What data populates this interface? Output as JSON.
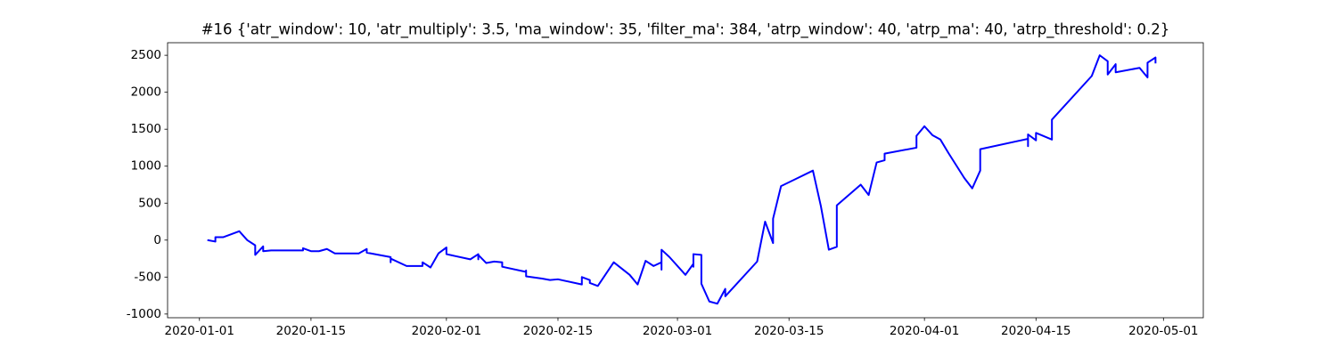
{
  "chart_data": {
    "type": "line",
    "title": "#16 {'atr_window': 10, 'atr_multiply': 3.5, 'ma_window': 35, 'filter_ma': 384, 'atrp_window': 40, 'atrp_ma': 40, 'atrp_threshold': 0.2}",
    "color": "#0000ff",
    "x": [
      "2020-01-02",
      "2020-01-03",
      "2020-01-03",
      "2020-01-04",
      "2020-01-06",
      "2020-01-07",
      "2020-01-08",
      "2020-01-08",
      "2020-01-09",
      "2020-01-09",
      "2020-01-10",
      "2020-01-14",
      "2020-01-14",
      "2020-01-15",
      "2020-01-16",
      "2020-01-17",
      "2020-01-18",
      "2020-01-21",
      "2020-01-22",
      "2020-01-22",
      "2020-01-25",
      "2020-01-25",
      "2020-01-25",
      "2020-01-27",
      "2020-01-29",
      "2020-01-29",
      "2020-01-30",
      "2020-01-31",
      "2020-02-01",
      "2020-02-01",
      "2020-02-04",
      "2020-02-05",
      "2020-02-05",
      "2020-02-05",
      "2020-02-06",
      "2020-02-07",
      "2020-02-08",
      "2020-02-08",
      "2020-02-11",
      "2020-02-11",
      "2020-02-11",
      "2020-02-13",
      "2020-02-14",
      "2020-02-15",
      "2020-02-18",
      "2020-02-18",
      "2020-02-19",
      "2020-02-19",
      "2020-02-20",
      "2020-02-22",
      "2020-02-24",
      "2020-02-25",
      "2020-02-26",
      "2020-02-27",
      "2020-02-28",
      "2020-02-28",
      "2020-02-28",
      "2020-02-29",
      "2020-03-02",
      "2020-03-03",
      "2020-03-03",
      "2020-03-03",
      "2020-03-04",
      "2020-03-04",
      "2020-03-05",
      "2020-03-06",
      "2020-03-07",
      "2020-03-07",
      "2020-03-11",
      "2020-03-12",
      "2020-03-13",
      "2020-03-13",
      "2020-03-14",
      "2020-03-18",
      "2020-03-19",
      "2020-03-20",
      "2020-03-21",
      "2020-03-21",
      "2020-03-24",
      "2020-03-25",
      "2020-03-26",
      "2020-03-27",
      "2020-03-27",
      "2020-03-31",
      "2020-03-31",
      "2020-04-01",
      "2020-04-02",
      "2020-04-03",
      "2020-04-04",
      "2020-04-06",
      "2020-04-07",
      "2020-04-08",
      "2020-04-08",
      "2020-04-14",
      "2020-04-14",
      "2020-04-14",
      "2020-04-15",
      "2020-04-15",
      "2020-04-17",
      "2020-04-17",
      "2020-04-22",
      "2020-04-23",
      "2020-04-24",
      "2020-04-24",
      "2020-04-25",
      "2020-04-25",
      "2020-04-28",
      "2020-04-29",
      "2020-04-29",
      "2020-04-30",
      "2020-04-30"
    ],
    "values": [
      0,
      -20,
      40,
      40,
      120,
      0,
      -70,
      -200,
      -85,
      -150,
      -140,
      -140,
      -110,
      -150,
      -150,
      -120,
      -180,
      -180,
      -120,
      -170,
      -230,
      -300,
      -250,
      -350,
      -350,
      -300,
      -370,
      -180,
      -100,
      -190,
      -260,
      -190,
      -260,
      -200,
      -310,
      -290,
      -300,
      -360,
      -430,
      -410,
      -490,
      -520,
      -540,
      -530,
      -600,
      -500,
      -540,
      -580,
      -620,
      -300,
      -470,
      -600,
      -280,
      -350,
      -300,
      -400,
      -130,
      -230,
      -470,
      -320,
      -360,
      -190,
      -200,
      -590,
      -830,
      -860,
      -660,
      -760,
      -290,
      250,
      -40,
      290,
      730,
      940,
      460,
      -130,
      -90,
      470,
      750,
      610,
      1050,
      1080,
      1170,
      1250,
      1410,
      1540,
      1420,
      1360,
      1180,
      840,
      700,
      940,
      1230,
      1370,
      1270,
      1430,
      1350,
      1450,
      1360,
      1630,
      2220,
      2500,
      2420,
      2240,
      2380,
      2270,
      2330,
      2200,
      2400,
      2470,
      2390
    ],
    "xlim": [
      "2019-12-28",
      "2020-05-06"
    ],
    "xticks": [
      "2020-01-01",
      "2020-01-15",
      "2020-02-01",
      "2020-02-15",
      "2020-03-01",
      "2020-03-15",
      "2020-04-01",
      "2020-04-15",
      "2020-05-01"
    ],
    "ylim": [
      -1050,
      2670
    ],
    "yticks": [
      -1000,
      -500,
      0,
      500,
      1000,
      1500,
      2000,
      2500
    ]
  }
}
